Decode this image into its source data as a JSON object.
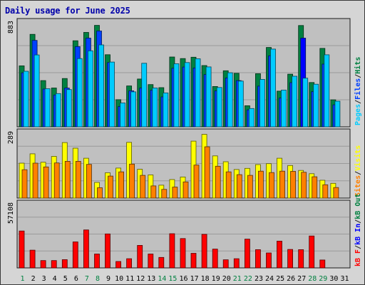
{
  "chart_data": {
    "type": "bar",
    "title": "Daily usage for June 2025",
    "categories": [
      "1",
      "2",
      "3",
      "4",
      "5",
      "6",
      "7",
      "8",
      "9",
      "10",
      "11",
      "12",
      "13",
      "14",
      "15",
      "16",
      "17",
      "18",
      "19",
      "20",
      "21",
      "22",
      "23",
      "24",
      "25",
      "26",
      "27",
      "28",
      "29",
      "30",
      "31"
    ],
    "weekend_days": [
      "1",
      "7",
      "8",
      "14",
      "15",
      "21",
      "22",
      "28",
      "29"
    ],
    "highlight_day": "27",
    "panels": [
      {
        "name": "hits-files-pages",
        "max_label": "883",
        "ylim": [
          0,
          883
        ],
        "legend": [
          {
            "label": "Pages",
            "color": "#00ccff"
          },
          {
            "label": "/",
            "color": "#222222"
          },
          {
            "label": "Files",
            "color": "#0040ff"
          },
          {
            "label": "/",
            "color": "#222222"
          },
          {
            "label": "Hits",
            "color": "#008040"
          }
        ],
        "series": [
          {
            "name": "Hits",
            "color": "#008040",
            "values": [
              504,
              764,
              382,
              321,
              399,
              711,
              780,
              838,
              596,
              224,
              338,
              395,
              349,
              324,
              577,
              564,
              575,
              506,
              333,
              463,
              442,
              174,
              439,
              656,
              295,
              435,
              837,
              366,
              648,
              223,
              0
            ]
          },
          {
            "name": "Files",
            "color": "#0040ff",
            "values": [
              446,
              714,
              312,
              263,
              320,
              663,
              733,
              792,
              531,
              168,
              297,
              320,
              302,
              247,
              484,
              494,
              486,
              432,
              297,
              404,
              382,
              140,
              336,
              587,
              238,
              365,
              733,
              290,
              518,
              182,
              0
            ]
          },
          {
            "name": "Pages",
            "color": "#00ccff",
            "values": [
              459,
              594,
              315,
              275,
              308,
              564,
              628,
              677,
              535,
              197,
              289,
              525,
              321,
              280,
              521,
              531,
              562,
              495,
              325,
              447,
              378,
              151,
              392,
              642,
              304,
              418,
              402,
              352,
              595,
              212,
              0
            ]
          }
        ]
      },
      {
        "name": "visits-sites",
        "max_label": "289",
        "ylim": [
          0,
          289
        ],
        "legend": [
          {
            "label": "Sites",
            "color": "#ff8000"
          },
          {
            "label": "/",
            "color": "#222222"
          },
          {
            "label": "Visits",
            "color": "#ffff00"
          }
        ],
        "series": [
          {
            "name": "Visits",
            "color": "#ffff00",
            "values": [
              149,
              189,
              153,
              178,
              237,
              213,
              170,
              67,
              108,
              128,
              238,
              123,
              99,
              55,
              79,
              90,
              243,
              272,
              180,
              155,
              122,
              127,
              143,
              147,
              170,
              139,
              118,
              104,
              76,
              63,
              0
            ]
          },
          {
            "name": "Sites",
            "color": "#ff8000",
            "values": [
              121,
              149,
              133,
              150,
              157,
              157,
              144,
              44,
              94,
              112,
              145,
              97,
              52,
              37,
              47,
              69,
              141,
              219,
              136,
              112,
              100,
              97,
              115,
              109,
              115,
              114,
              110,
              91,
              57,
              45,
              0
            ]
          }
        ]
      },
      {
        "name": "kbytes",
        "max_label": "57108",
        "ylim": [
          0,
          57108
        ],
        "legend": [
          {
            "label": "kB F",
            "color": "#ff0000"
          },
          {
            "label": "/",
            "color": "#222222"
          },
          {
            "label": "kB In",
            "color": "#0000ff"
          },
          {
            "label": "/",
            "color": "#222222"
          },
          {
            "label": "kB Out",
            "color": "#008040"
          }
        ],
        "series": [
          {
            "name": "kB F",
            "color": "#ff0000",
            "values": [
              31800,
              15300,
              6300,
              6300,
              7100,
              22400,
              32700,
              12000,
              29300,
              5500,
              7900,
              19400,
              12000,
              9000,
              29500,
              25300,
              12600,
              28900,
              16200,
              7000,
              7900,
              24800,
              15700,
              12900,
              23100,
              15900,
              15700,
              27500,
              6800,
              0,
              0
            ]
          }
        ]
      }
    ]
  }
}
